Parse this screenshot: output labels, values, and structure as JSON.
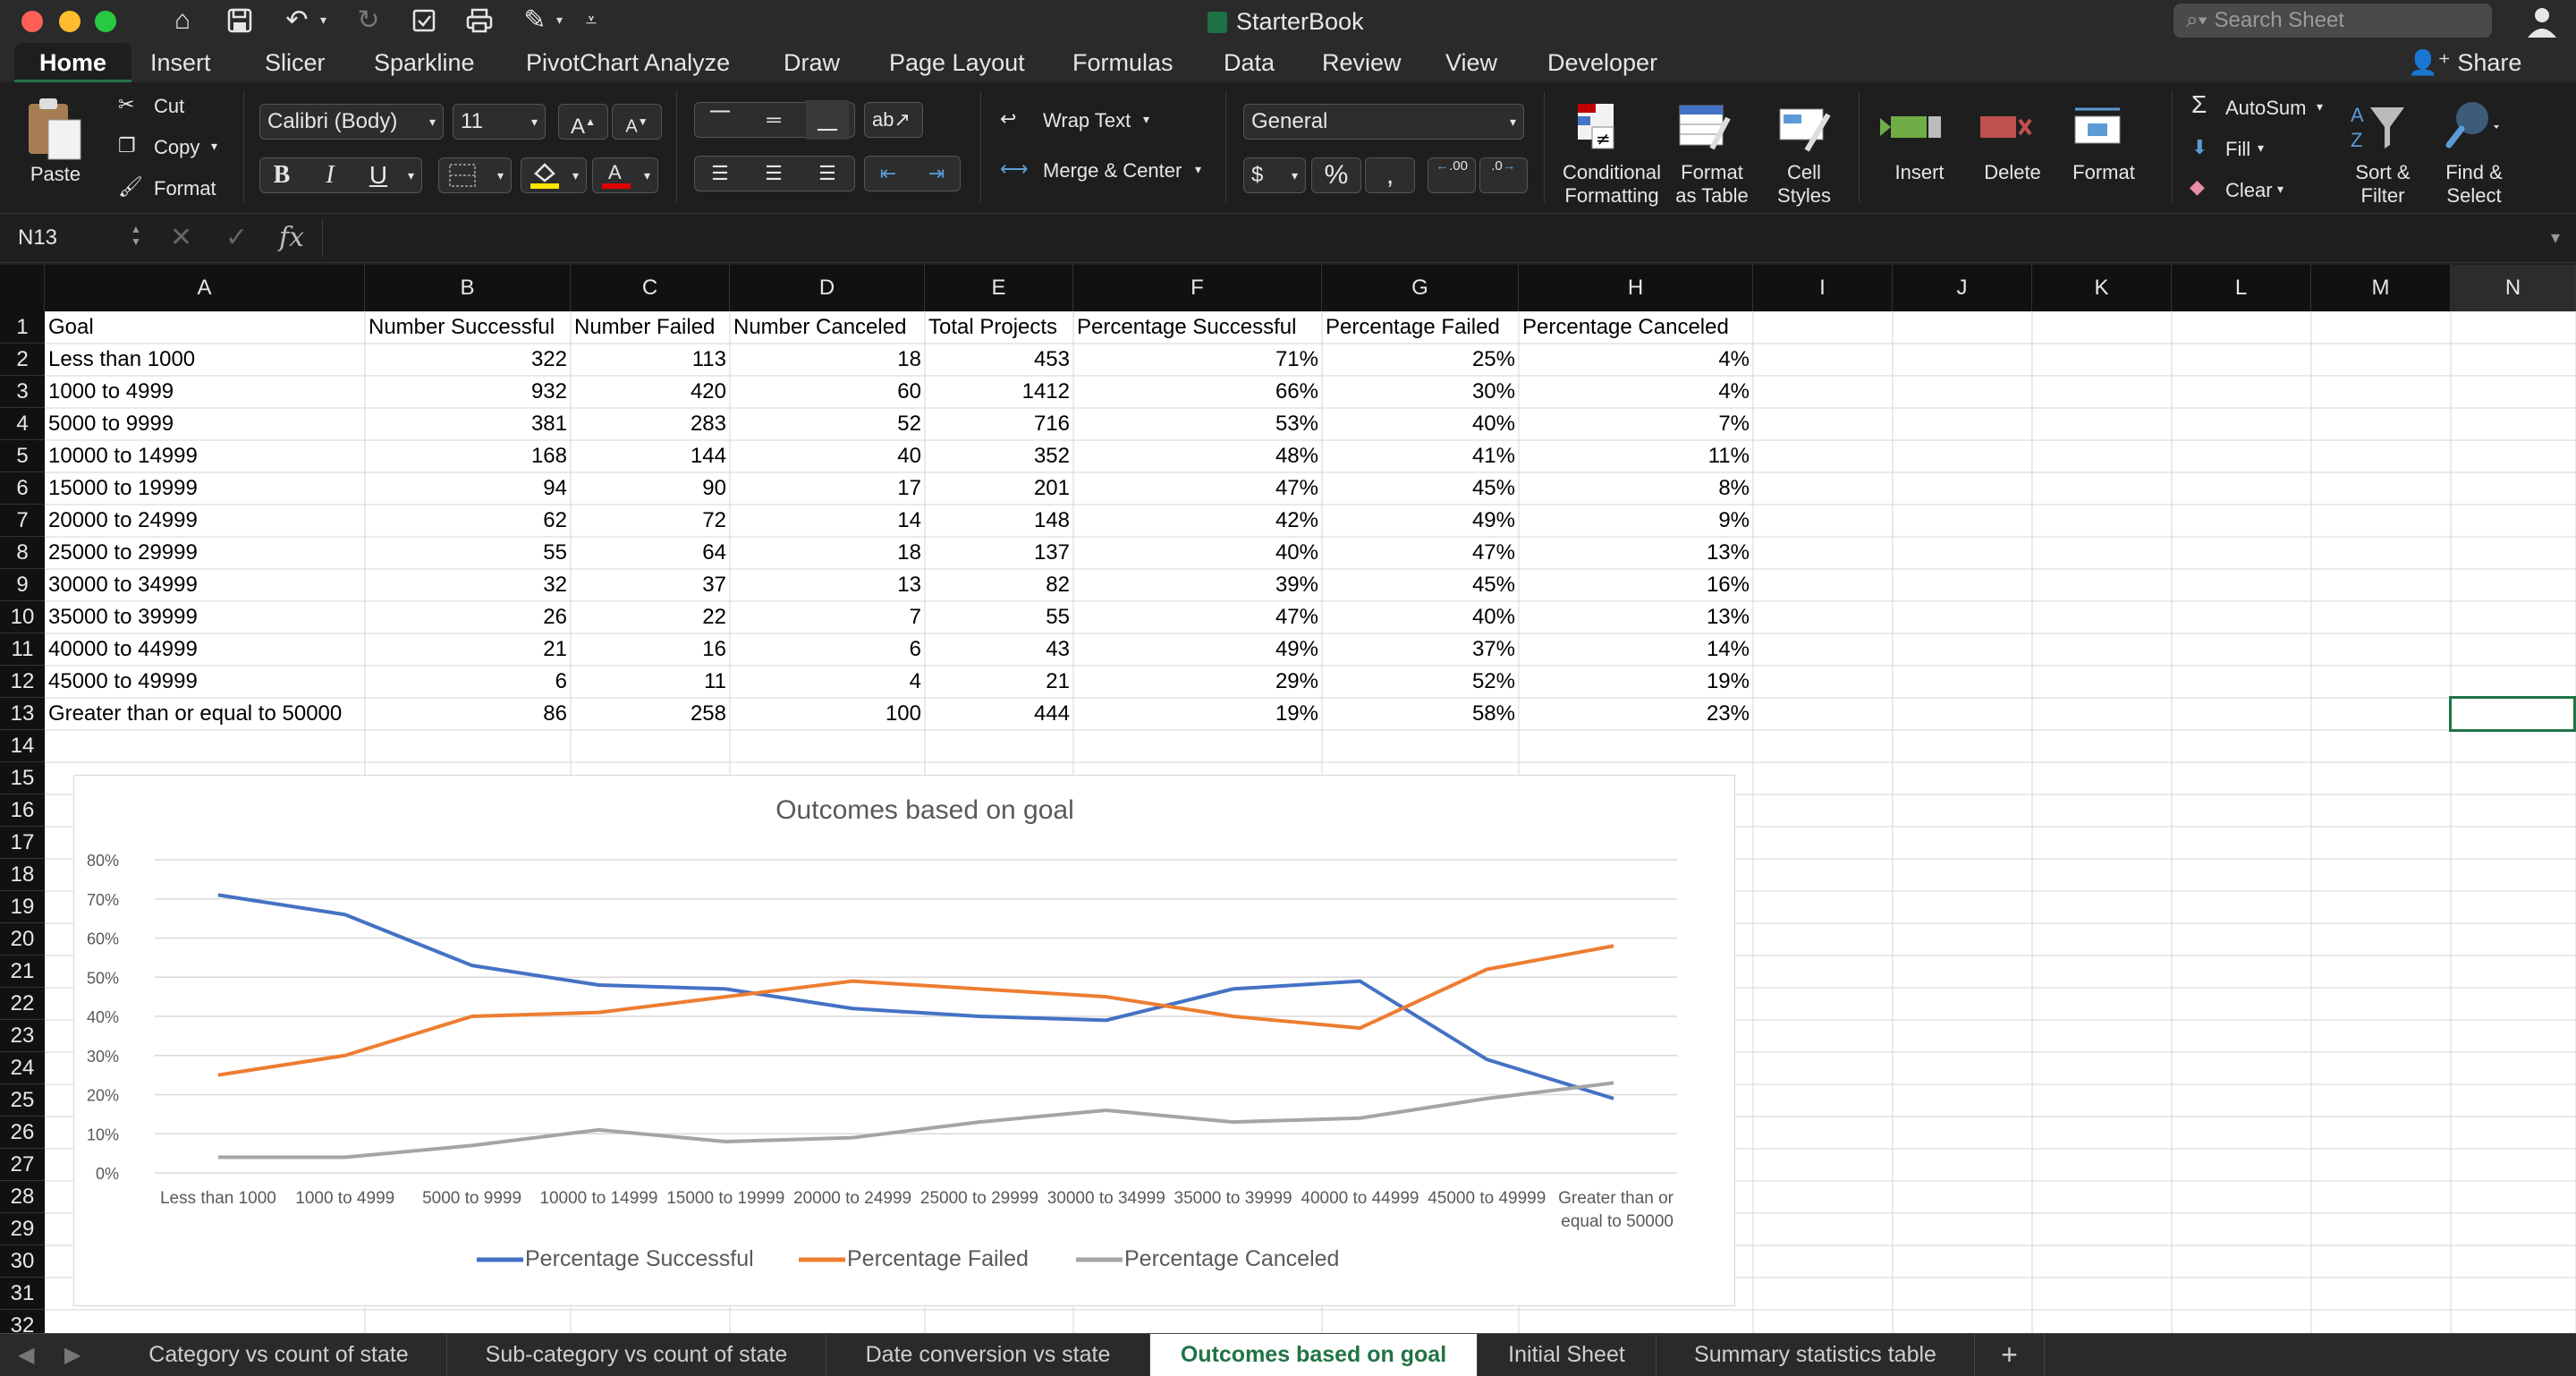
{
  "window": {
    "title": "StarterBook",
    "search_placeholder": "Search Sheet"
  },
  "menu": {
    "tabs": [
      "Home",
      "Insert",
      "Slicer",
      "Sparkline",
      "PivotChart Analyze",
      "Draw",
      "Page Layout",
      "Formulas",
      "Data",
      "Review",
      "View",
      "Developer"
    ],
    "active_tab": "Home",
    "share": "Share"
  },
  "ribbon": {
    "paste": "Paste",
    "cut": "Cut",
    "copy": "Copy",
    "format_painter": "Format",
    "font_name": "Calibri (Body)",
    "font_size": "11",
    "bold": "B",
    "italic": "I",
    "underline": "U",
    "wrap_text": "Wrap Text",
    "merge_center": "Merge & Center",
    "number_format": "General",
    "currency": "$",
    "percent": "%",
    "comma": ",",
    "decimal_inc": ".00",
    "decimal_dec": ".0",
    "conditional_formatting": [
      "Conditional",
      "Formatting"
    ],
    "format_as_table": [
      "Format",
      "as Table"
    ],
    "cell_styles": [
      "Cell",
      "Styles"
    ],
    "insert": "Insert",
    "delete": "Delete",
    "format": "Format",
    "autosum": "AutoSum",
    "fill": "Fill",
    "clear": "Clear",
    "sort_filter": [
      "Sort &",
      "Filter"
    ],
    "find_select": [
      "Find &",
      "Select"
    ]
  },
  "formula_bar": {
    "name_box": "N13",
    "formula": ""
  },
  "columns": [
    "A",
    "B",
    "C",
    "D",
    "E",
    "F",
    "G",
    "H",
    "I",
    "J",
    "K",
    "L",
    "M",
    "N"
  ],
  "rows": [
    "1",
    "2",
    "3",
    "4",
    "5",
    "6",
    "7",
    "8",
    "9",
    "10",
    "11",
    "12",
    "13",
    "14",
    "15",
    "16",
    "17",
    "18",
    "19",
    "20",
    "21",
    "22",
    "23",
    "24",
    "25",
    "26",
    "27",
    "28",
    "29",
    "30",
    "31",
    "32"
  ],
  "table": {
    "headers": [
      "Goal",
      "Number Successful",
      "Number Failed",
      "Number Canceled",
      "Total Projects",
      "Percentage Successful",
      "Percentage Failed",
      "Percentage Canceled"
    ],
    "rows": [
      [
        "Less than 1000",
        "322",
        "113",
        "18",
        "453",
        "71%",
        "25%",
        "4%"
      ],
      [
        "1000 to 4999",
        "932",
        "420",
        "60",
        "1412",
        "66%",
        "30%",
        "4%"
      ],
      [
        "5000 to 9999",
        "381",
        "283",
        "52",
        "716",
        "53%",
        "40%",
        "7%"
      ],
      [
        "10000 to 14999",
        "168",
        "144",
        "40",
        "352",
        "48%",
        "41%",
        "11%"
      ],
      [
        "15000 to 19999",
        "94",
        "90",
        "17",
        "201",
        "47%",
        "45%",
        "8%"
      ],
      [
        "20000 to 24999",
        "62",
        "72",
        "14",
        "148",
        "42%",
        "49%",
        "9%"
      ],
      [
        "25000 to 29999",
        "55",
        "64",
        "18",
        "137",
        "40%",
        "47%",
        "13%"
      ],
      [
        "30000 to 34999",
        "32",
        "37",
        "13",
        "82",
        "39%",
        "45%",
        "16%"
      ],
      [
        "35000 to 39999",
        "26",
        "22",
        "7",
        "55",
        "47%",
        "40%",
        "13%"
      ],
      [
        "40000 to 44999",
        "21",
        "16",
        "6",
        "43",
        "49%",
        "37%",
        "14%"
      ],
      [
        "45000 to 49999",
        "6",
        "11",
        "4",
        "21",
        "29%",
        "52%",
        "19%"
      ],
      [
        "Greater than or equal to 50000",
        "86",
        "258",
        "100",
        "444",
        "19%",
        "58%",
        "23%"
      ]
    ]
  },
  "selected_cell": "N13",
  "chart_data": {
    "type": "line",
    "title": "Outcomes based on goal",
    "categories": [
      "Less than 1000",
      "1000 to 4999",
      "5000 to 9999",
      "10000 to 14999",
      "15000 to 19999",
      "20000 to 24999",
      "25000 to 29999",
      "30000 to 34999",
      "35000 to 39999",
      "40000 to 44999",
      "45000 to 49999",
      "Greater than or equal to 50000"
    ],
    "category_labels": [
      [
        "Less than 1000"
      ],
      [
        "1000 to 4999"
      ],
      [
        "5000 to 9999"
      ],
      [
        "10000 to 14999"
      ],
      [
        "15000 to 19999"
      ],
      [
        "20000 to 24999"
      ],
      [
        "25000 to 29999"
      ],
      [
        "30000 to 34999"
      ],
      [
        "35000 to 39999"
      ],
      [
        "40000 to 44999"
      ],
      [
        "45000 to 49999"
      ],
      [
        "Greater than or",
        "equal to 50000"
      ]
    ],
    "series": [
      {
        "name": "Percentage Successful",
        "color": "#4472c4",
        "values": [
          71,
          66,
          53,
          48,
          47,
          42,
          40,
          39,
          47,
          49,
          29,
          19
        ]
      },
      {
        "name": "Percentage Failed",
        "color": "#ed7d31",
        "values": [
          25,
          30,
          40,
          41,
          45,
          49,
          47,
          45,
          40,
          37,
          52,
          58
        ]
      },
      {
        "name": "Percentage Canceled",
        "color": "#a5a5a5",
        "values": [
          4,
          4,
          7,
          11,
          8,
          9,
          13,
          16,
          13,
          14,
          19,
          23
        ]
      }
    ],
    "ylim": [
      0,
      80
    ],
    "yticks": [
      "0%",
      "10%",
      "20%",
      "30%",
      "40%",
      "50%",
      "60%",
      "70%",
      "80%"
    ],
    "grid": true,
    "legend": "bottom"
  },
  "sheet_tabs": [
    "Category vs count of state",
    "Sub-category vs count of state",
    "Date conversion vs state",
    "Outcomes based on goal",
    "Initial Sheet",
    "Summary statistics table"
  ],
  "active_sheet": "Outcomes based on goal",
  "add_sheet": "+"
}
